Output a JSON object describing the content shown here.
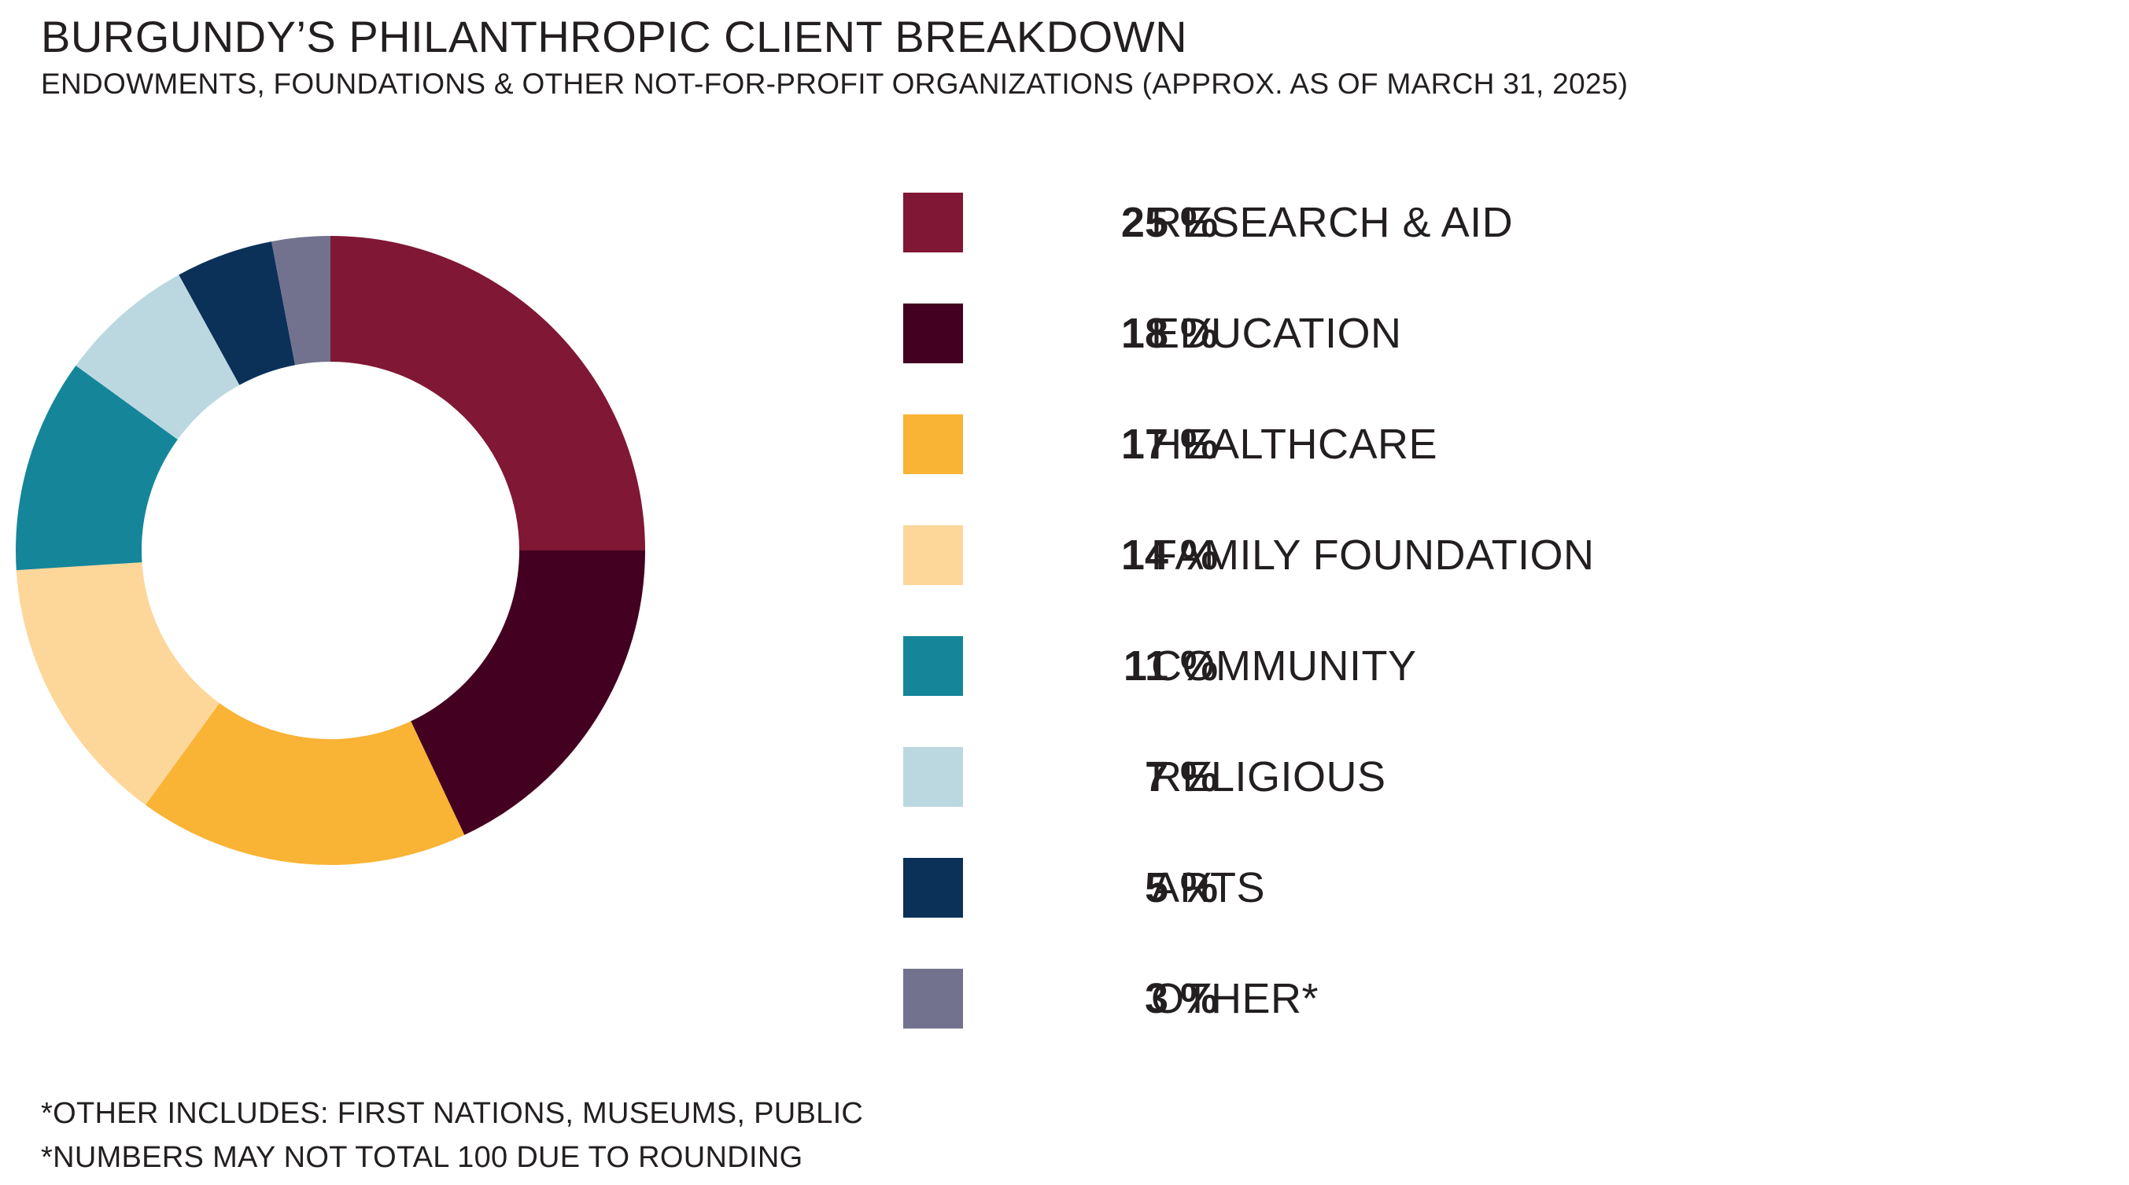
{
  "header": {
    "title": "BURGUNDY’S PHILANTHROPIC CLIENT BREAKDOWN",
    "subtitle": "ENDOWMENTS, FOUNDATIONS & OTHER NOT-FOR-PROFIT ORGANIZATIONS (APPROX. AS OF MARCH 31, 2025)"
  },
  "chart_data": {
    "type": "pie",
    "donut": true,
    "title": "BURGUNDY’S PHILANTHROPIC CLIENT BREAKDOWN",
    "subtitle": "ENDOWMENTS, FOUNDATIONS & OTHER NOT-FOR-PROFIT ORGANIZATIONS (APPROX. AS OF MARCH 31, 2025)",
    "legend_position": "right",
    "slices": [
      {
        "label": "RESEARCH & AID",
        "value": 25,
        "pct_label": "25 %",
        "color": "#801735"
      },
      {
        "label": "EDUCATION",
        "value": 18,
        "pct_label": "18 %",
        "color": "#440020"
      },
      {
        "label": "HEALTHCARE",
        "value": 17,
        "pct_label": "17 %",
        "color": "#f9b335"
      },
      {
        "label": "FAMILY FOUNDATION",
        "value": 14,
        "pct_label": "14 %",
        "color": "#fdd699"
      },
      {
        "label": "COMMUNITY",
        "value": 11,
        "pct_label": "11 %",
        "color": "#15869a"
      },
      {
        "label": "RELIGIOUS",
        "value": 7,
        "pct_label": "7 %",
        "color": "#bbd8e0"
      },
      {
        "label": "ARTS",
        "value": 5,
        "pct_label": "5 %",
        "color": "#0b3159"
      },
      {
        "label": "OTHER*",
        "value": 3,
        "pct_label": "3 %",
        "color": "#72728e"
      }
    ]
  },
  "footnotes": {
    "line1": "*OTHER INCLUDES: FIRST NATIONS, MUSEUMS, PUBLIC",
    "line2": "*NUMBERS MAY NOT TOTAL 100 DUE TO ROUNDING"
  }
}
